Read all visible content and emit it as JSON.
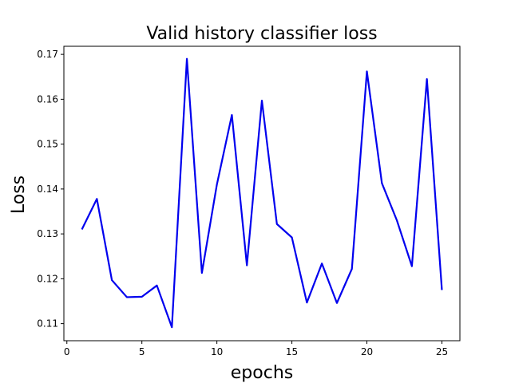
{
  "chart_data": {
    "type": "line",
    "title": "Valid history classifier loss",
    "xlabel": "epochs",
    "ylabel": "Loss",
    "xlim": [
      -0.2,
      26.2
    ],
    "ylim": [
      0.1062,
      0.1718
    ],
    "xticks": [
      0,
      5,
      10,
      15,
      20,
      25
    ],
    "yticks": [
      0.11,
      0.12,
      0.13,
      0.14,
      0.15,
      0.16,
      0.17
    ],
    "grid": false,
    "line_color": "#0000ee",
    "x": [
      1,
      2,
      3,
      4,
      5,
      6,
      7,
      8,
      9,
      10,
      11,
      12,
      13,
      14,
      15,
      16,
      17,
      18,
      19,
      20,
      21,
      22,
      23,
      24,
      25
    ],
    "series": [
      {
        "values": [
          0.131,
          0.1378,
          0.1197,
          0.1159,
          0.116,
          0.1185,
          0.1092,
          0.169,
          0.1213,
          0.141,
          0.1565,
          0.123,
          0.1597,
          0.1322,
          0.1292,
          0.1147,
          0.1234,
          0.1146,
          0.1222,
          0.1662,
          0.1413,
          0.133,
          0.1228,
          0.1645,
          0.1175
        ]
      }
    ]
  }
}
